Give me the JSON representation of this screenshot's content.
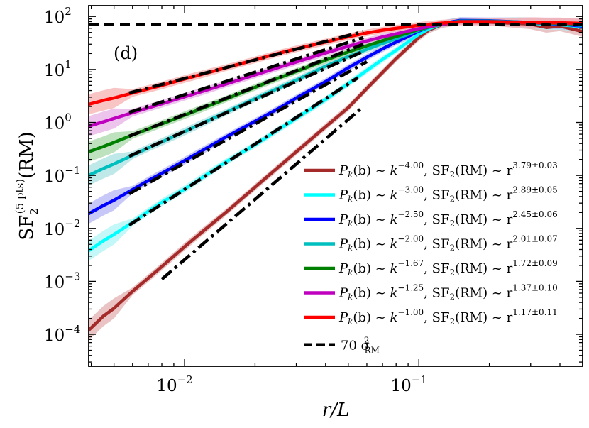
{
  "chart_data": {
    "type": "line",
    "panel_label": "(d)",
    "xlabel": "r/L",
    "ylabel": "SF2(5 pts)(RM)",
    "x_scale": "log",
    "y_scale": "log",
    "xlim": [
      0.0039,
      0.5
    ],
    "ylim": [
      2.5e-05,
      160
    ],
    "x_ticks": [
      {
        "value": 0.01,
        "base": "10",
        "exp": "−2"
      },
      {
        "value": 0.1,
        "base": "10",
        "exp": "−1"
      }
    ],
    "y_ticks": [
      {
        "value": 0.0001,
        "base": "10",
        "exp": "−4"
      },
      {
        "value": 0.001,
        "base": "10",
        "exp": "−3"
      },
      {
        "value": 0.01,
        "base": "10",
        "exp": "−2"
      },
      {
        "value": 0.1,
        "base": "10",
        "exp": "−1"
      },
      {
        "value": 1,
        "base": "10",
        "exp": "0"
      },
      {
        "value": 10,
        "base": "10",
        "exp": "1"
      },
      {
        "value": 100,
        "base": "10",
        "exp": "2"
      }
    ],
    "reference_line": {
      "label_main": "70 σ",
      "label_sup": "2",
      "label_sub": "RM",
      "value": 70,
      "color": "#000000"
    },
    "series": [
      {
        "spectrum": "k",
        "spectrum_exp": "−4.00",
        "slope": "3.79±0.03",
        "color": "#a52a2a",
        "band": "#e3b0b0",
        "x": [
          0.0039,
          0.0045,
          0.005,
          0.006,
          0.007,
          0.008,
          0.01,
          0.012,
          0.015,
          0.02,
          0.025,
          0.03,
          0.04,
          0.05,
          0.06,
          0.07,
          0.08,
          0.09,
          0.1,
          0.11,
          0.125,
          0.15,
          0.2,
          0.3,
          0.35,
          0.4,
          0.5
        ],
        "y": [
          0.00012,
          0.00022,
          0.00031,
          0.00065,
          0.00115,
          0.0019,
          0.0045,
          0.0089,
          0.02,
          0.06,
          0.14,
          0.28,
          0.83,
          1.9,
          4.4,
          8.8,
          16,
          26,
          40,
          55,
          70,
          80,
          78,
          72,
          62,
          66,
          52
        ],
        "fit_x": [
          0.008,
          0.058
        ],
        "fit_y": [
          0.0011,
          2.0
        ]
      },
      {
        "spectrum": "k",
        "spectrum_exp": "−3.00",
        "slope": "2.89±0.05",
        "color": "#00ffff",
        "band": "#b0f5f5",
        "x": [
          0.0039,
          0.0045,
          0.005,
          0.006,
          0.007,
          0.008,
          0.01,
          0.012,
          0.015,
          0.02,
          0.025,
          0.03,
          0.04,
          0.05,
          0.06,
          0.07,
          0.08,
          0.09,
          0.1,
          0.11,
          0.125,
          0.15,
          0.2,
          0.3,
          0.35,
          0.4,
          0.5
        ],
        "y": [
          0.0038,
          0.0058,
          0.0077,
          0.013,
          0.021,
          0.031,
          0.055,
          0.094,
          0.18,
          0.38,
          0.72,
          1.2,
          2.7,
          5.4,
          9.6,
          15.5,
          23,
          33,
          46,
          58,
          72,
          84,
          82,
          76,
          70,
          70,
          64
        ],
        "fit_x": [
          0.0058,
          0.055
        ],
        "fit_y": [
          0.0115,
          7.0
        ]
      },
      {
        "spectrum": "k",
        "spectrum_exp": "−2.50",
        "slope": "2.45±0.06",
        "color": "#0000ff",
        "band": "#b5b5f5",
        "x": [
          0.0039,
          0.0045,
          0.005,
          0.006,
          0.007,
          0.008,
          0.01,
          0.012,
          0.015,
          0.02,
          0.025,
          0.03,
          0.04,
          0.05,
          0.06,
          0.07,
          0.08,
          0.09,
          0.1,
          0.11,
          0.125,
          0.15,
          0.2,
          0.3,
          0.35,
          0.4,
          0.5
        ],
        "y": [
          0.019,
          0.027,
          0.034,
          0.054,
          0.08,
          0.11,
          0.19,
          0.3,
          0.53,
          1.05,
          1.8,
          2.9,
          5.9,
          10.8,
          17,
          24.5,
          33,
          42,
          53,
          62,
          73,
          84,
          83,
          77,
          73,
          72,
          66
        ],
        "fit_x": [
          0.0058,
          0.06
        ],
        "fit_y": [
          0.045,
          14
        ]
      },
      {
        "spectrum": "k",
        "spectrum_exp": "−2.00",
        "slope": "2.01±0.07",
        "color": "#00bfbf",
        "band": "#aae0e0",
        "x": [
          0.0039,
          0.0045,
          0.005,
          0.006,
          0.007,
          0.008,
          0.01,
          0.012,
          0.015,
          0.02,
          0.025,
          0.03,
          0.04,
          0.05,
          0.06,
          0.07,
          0.08,
          0.09,
          0.1,
          0.11,
          0.125,
          0.15,
          0.2,
          0.3,
          0.35,
          0.4,
          0.5
        ],
        "y": [
          0.1,
          0.135,
          0.165,
          0.24,
          0.33,
          0.43,
          0.67,
          0.98,
          1.55,
          2.8,
          4.4,
          6.3,
          11.5,
          17.5,
          24,
          31,
          38,
          46,
          55,
          62,
          72,
          82,
          82,
          77,
          74,
          74,
          68
        ],
        "fit_x": [
          0.0058,
          0.058
        ],
        "fit_y": [
          0.23,
          22
        ]
      },
      {
        "spectrum": "k",
        "spectrum_exp": "−1.67",
        "slope": "1.72±0.09",
        "color": "#008000",
        "band": "#a8d8a8",
        "x": [
          0.0039,
          0.0045,
          0.005,
          0.006,
          0.007,
          0.008,
          0.01,
          0.012,
          0.015,
          0.02,
          0.025,
          0.03,
          0.04,
          0.05,
          0.06,
          0.07,
          0.08,
          0.09,
          0.1,
          0.11,
          0.125,
          0.15,
          0.2,
          0.3,
          0.35,
          0.4,
          0.5
        ],
        "y": [
          0.28,
          0.35,
          0.42,
          0.58,
          0.75,
          0.94,
          1.37,
          1.87,
          2.75,
          4.6,
          6.8,
          9.2,
          15,
          21.5,
          28,
          35,
          42,
          49,
          57,
          63,
          72,
          81,
          81,
          77,
          75,
          75,
          70
        ],
        "fit_x": [
          0.0058,
          0.058
        ],
        "fit_y": [
          0.55,
          30
        ]
      },
      {
        "spectrum": "k",
        "spectrum_exp": "−1.25",
        "slope": "1.37±0.10",
        "color": "#bf00bf",
        "band": "#e5b0e5",
        "x": [
          0.0039,
          0.0045,
          0.005,
          0.006,
          0.007,
          0.008,
          0.01,
          0.012,
          0.015,
          0.02,
          0.025,
          0.03,
          0.04,
          0.05,
          0.06,
          0.07,
          0.08,
          0.09,
          0.1,
          0.11,
          0.125,
          0.15,
          0.2,
          0.3,
          0.35,
          0.4,
          0.5
        ],
        "y": [
          0.85,
          1.03,
          1.19,
          1.53,
          1.88,
          2.25,
          3.05,
          3.9,
          5.3,
          7.9,
          10.8,
          13.8,
          20.5,
          27.5,
          34.5,
          41,
          47,
          53,
          59,
          64,
          72,
          80,
          80,
          77,
          76,
          76,
          72
        ],
        "fit_x": [
          0.0058,
          0.058
        ],
        "fit_y": [
          1.55,
          40
        ]
      },
      {
        "spectrum": "k",
        "spectrum_exp": "−1.00",
        "slope": "1.17±0.11",
        "color": "#ff0000",
        "band": "#f5b0b0",
        "x": [
          0.0039,
          0.0045,
          0.005,
          0.006,
          0.007,
          0.008,
          0.01,
          0.012,
          0.015,
          0.02,
          0.025,
          0.03,
          0.04,
          0.05,
          0.06,
          0.07,
          0.08,
          0.09,
          0.1,
          0.11,
          0.125,
          0.15,
          0.2,
          0.3,
          0.35,
          0.4,
          0.5
        ],
        "y": [
          2.2,
          2.6,
          2.9,
          3.6,
          4.3,
          5.0,
          6.6,
          8.2,
          10.8,
          15.2,
          20,
          24.5,
          33,
          41.5,
          49,
          55,
          60,
          64,
          68,
          71,
          75,
          79,
          79,
          77,
          76,
          76,
          74
        ],
        "fit_x": [
          0.0058,
          0.058
        ],
        "fit_y": [
          3.6,
          52
        ]
      }
    ],
    "legend": {
      "placement": "lower-right",
      "prefix_main": "P",
      "prefix_sub": "k",
      "prefix_arg": "(b) ~ ",
      "middle": ", SF",
      "middle_sub": "2",
      "middle_tail": "(RM) ~ r"
    }
  }
}
